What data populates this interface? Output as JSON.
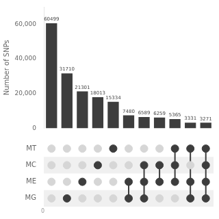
{
  "chart_data": {
    "type": "bar",
    "categories": [
      null,
      null,
      null,
      null,
      null,
      null,
      null,
      null,
      null,
      null,
      null
    ],
    "values": [
      60499,
      31710,
      21301,
      18013,
      15334,
      7480,
      6589,
      6259,
      5365,
      3331,
      3271
    ],
    "color": "#3d3d3d",
    "ylabel": "Number of SNPs",
    "ylim": [
      0,
      70000
    ],
    "yticks": [
      0,
      {
        "value": 20000,
        "label": "20,000"
      },
      {
        "value": 40000,
        "label": "40,000"
      },
      {
        "value": 60000,
        "label": "60,000"
      }
    ],
    "grid": false,
    "data_labels": true,
    "tick_labels": "y",
    "sets": [
      "MT",
      "MC",
      "ME",
      "MG"
    ],
    "intersections": [
      [],
      [
        "MG"
      ],
      [
        "ME"
      ],
      [
        "MC"
      ],
      [
        "MT"
      ],
      [
        "ME",
        "MG"
      ],
      [
        "MC",
        "ME",
        "MG"
      ],
      [
        "MC",
        "ME"
      ],
      [
        "MT",
        "MC",
        "ME"
      ],
      [
        "MT",
        "ME",
        "MG"
      ],
      [
        "MT",
        "MC",
        "ME",
        "MG"
      ]
    ],
    "annotations": [
      "0"
    ]
  }
}
